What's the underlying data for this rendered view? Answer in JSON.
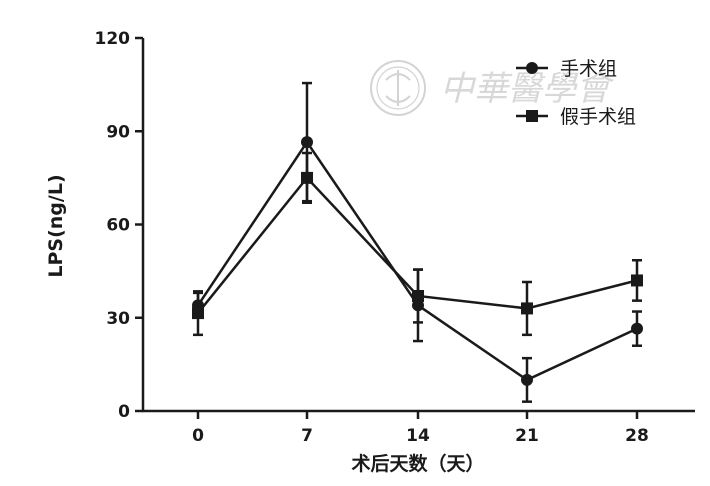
{
  "chart_data": {
    "type": "line",
    "xlabel": "术后天数（天）",
    "ylabel": "LPS(ng/L)",
    "x": [
      0,
      7,
      14,
      21,
      28
    ],
    "x_ticks": [
      "0",
      "7",
      "14",
      "21",
      "28"
    ],
    "y_ticks": [
      "0",
      "30",
      "60",
      "90",
      "120"
    ],
    "ylim": [
      0,
      120
    ],
    "grid": false,
    "legend_position": "top-right",
    "series": [
      {
        "name": "手术组",
        "marker": "circle",
        "color": "#1a1a1a",
        "values": [
          34,
          86.5,
          34,
          10,
          26.5
        ],
        "error": [
          4,
          19,
          11.5,
          7,
          5.5
        ]
      },
      {
        "name": "假手术组",
        "marker": "square",
        "color": "#1a1a1a",
        "values": [
          31.5,
          75,
          37,
          33,
          42
        ],
        "error": [
          7,
          8,
          8.5,
          8.5,
          6.5
        ]
      }
    ]
  },
  "watermark": {
    "text": "中華醫學會"
  }
}
